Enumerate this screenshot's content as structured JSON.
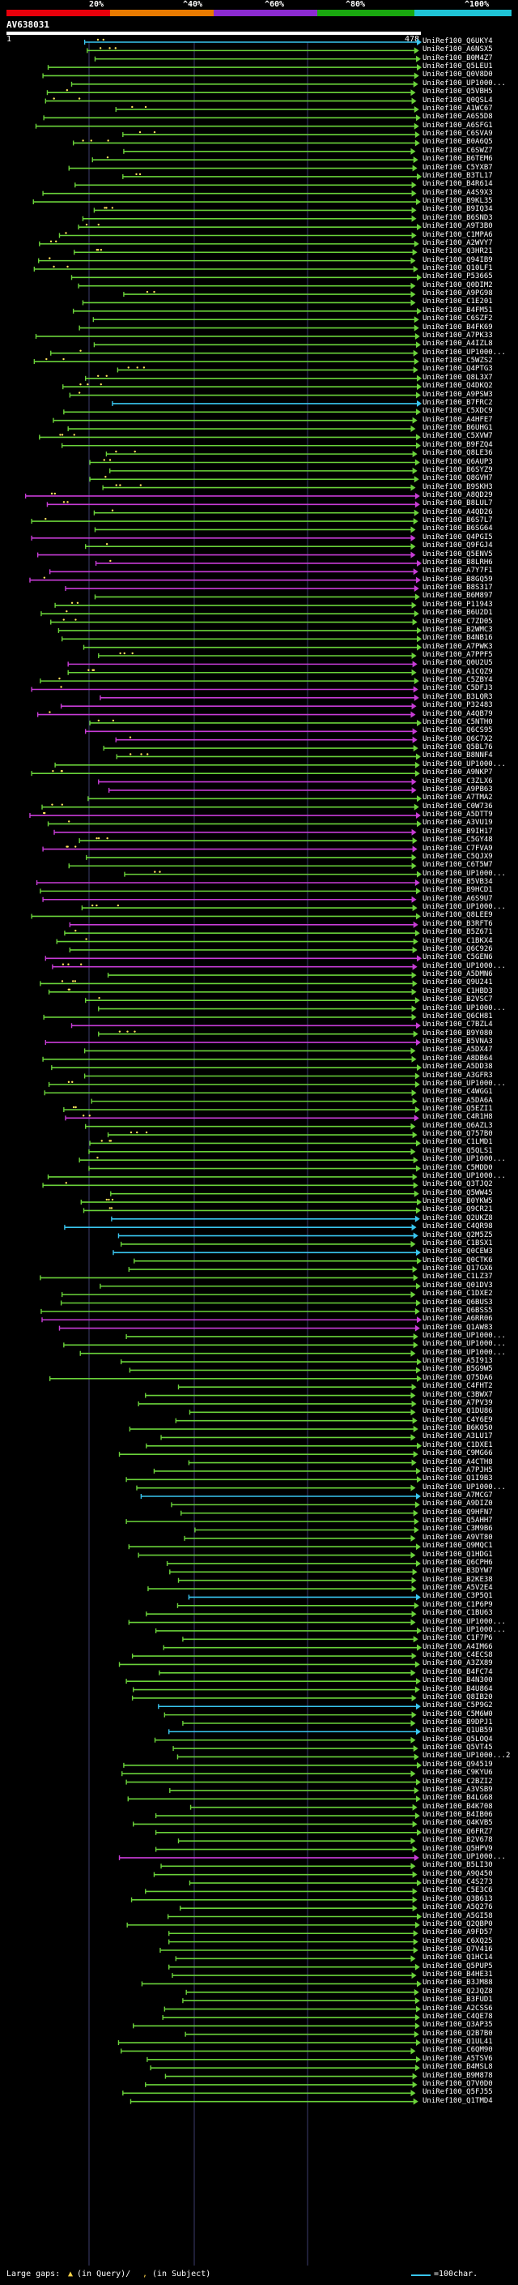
{
  "header": {
    "percent_labels": [
      "20%",
      "^40%",
      "^60%",
      "^80%",
      "^100%"
    ],
    "query_id": "AV638031",
    "scale_start": "1",
    "scale_end": "478"
  },
  "colors": {
    "band": [
      "#e8000b",
      "#e87a00",
      "#8c2bd1",
      "#19a80f",
      "#1fc4d6"
    ],
    "green": "#6ad23a",
    "magenta": "#c73cd6",
    "cyan": "#39c6f0",
    "background": "#000000",
    "guide": "#3b3b6b"
  },
  "axis": {
    "min": 1,
    "max": 478
  },
  "hit_ids": [
    "UniRef100_Q6UKY4",
    "UniRef100_A6NSX5",
    "UniRef100_B0M4Z7",
    "UniRef100_Q5LEU1",
    "UniRef100_Q0V8D0",
    "UniRef100_UP1000...",
    "UniRef100_Q5VBH5",
    "UniRef100_Q0QSL4",
    "UniRef100_A1WC67",
    "UniRef100_A6S5D8",
    "UniRef100_A6SFG1",
    "UniRef100_C6SVA9",
    "UniRef100_B0A6Q5",
    "UniRef100_C6SWZ7",
    "UniRef100_B6TEM6",
    "UniRef100_C5YXB7",
    "UniRef100_B3TL17",
    "UniRef100_B4R614",
    "UniRef100_A4S9X3",
    "UniRef100_B9KL35",
    "UniRef100_B9IQ34",
    "UniRef100_B6SND3",
    "UniRef100_A9T3B0",
    "UniRef100_C1MPA6",
    "UniRef100_A2WVY7",
    "UniRef100_Q3HR21",
    "UniRef100_Q94IB9",
    "UniRef100_Q10LF1",
    "UniRef100_P53665",
    "UniRef100_Q0DIM2",
    "UniRef100_A9PG98",
    "UniRef100_C1E201",
    "UniRef100_B4FM51",
    "UniRef100_C6SZF2",
    "UniRef100_B4FK69",
    "UniRef100_A7PK33",
    "UniRef100_A4IZL8",
    "UniRef100_UP1000...",
    "UniRef100_C5WZS2",
    "UniRef100_Q4PTG3",
    "UniRef100_Q8L3X7",
    "UniRef100_Q4DKQ2",
    "UniRef100_A9PSW3",
    "UniRef100_B7FRC2",
    "UniRef100_C5XDC9",
    "UniRef100_A4HFE7",
    "UniRef100_B6UHG1",
    "UniRef100_C5XVW7",
    "UniRef100_B9FZQ4",
    "UniRef100_Q8LE36",
    "UniRef100_Q6AUP3",
    "UniRef100_B6SYZ9",
    "UniRef100_Q8GVH7",
    "UniRef100_B9SKH3",
    "UniRef100_A8QD29",
    "UniRef100_B8LUL7",
    "UniRef100_A4QD26",
    "UniRef100_B6S7L7",
    "UniRef100_B6SG64",
    "UniRef100_Q4PGI5",
    "UniRef100_Q9FGJ4",
    "UniRef100_Q5ENV5",
    "UniRef100_B8LRH6",
    "UniRef100_A7Y7F1",
    "UniRef100_B8GQ59",
    "UniRef100_B8S317",
    "UniRef100_B6M897",
    "UniRef100_P11943",
    "UniRef100_B6U2D1",
    "UniRef100_C7ZD05",
    "UniRef100_B2WMC3",
    "UniRef100_B4NB16",
    "UniRef100_A7PWK3",
    "UniRef100_A7PPF5",
    "UniRef100_Q0U2U5",
    "UniRef100_A1CQZ9",
    "UniRef100_C5ZBY4",
    "UniRef100_C5DFJ3",
    "UniRef100_B3LQR3",
    "UniRef100_P32483",
    "UniRef100_A4QB79",
    "UniRef100_C5NTH0",
    "UniRef100_Q6CS95",
    "UniRef100_Q6C7X2",
    "UniRef100_Q5BL76",
    "UniRef100_B8NNF4",
    "UniRef100_UP1000...",
    "UniRef100_A9NKP7",
    "UniRef100_C3ZLX6",
    "UniRef100_A9PB63",
    "UniRef100_A7TMA2",
    "UniRef100_C0W736",
    "UniRef100_A5DTT9",
    "UniRef100_A3VU19",
    "UniRef100_B9IH17",
    "UniRef100_C5GY48",
    "UniRef100_C7FVA9",
    "UniRef100_C5QJX9",
    "UniRef100_C6T5W7",
    "UniRef100_UP1000...",
    "UniRef100_B5VB34",
    "UniRef100_B9HCD1",
    "UniRef100_A6S9U7",
    "UniRef100_UP1000...",
    "UniRef100_Q8LEE9",
    "UniRef100_B3RFT6",
    "UniRef100_B5Z671",
    "UniRef100_C1BKX4",
    "UniRef100_Q6C926",
    "UniRef100_C5GEN6",
    "UniRef100_UP1000...",
    "UniRef100_A5DMN6",
    "UniRef100_Q9U241",
    "UniRef100_C1HBD3",
    "UniRef100_B2VSC7",
    "UniRef100_UP1000...",
    "UniRef100_Q6CH81",
    "UniRef100_C7BZL4",
    "UniRef100_B9Y080",
    "UniRef100_B5VNA3",
    "UniRef100_A5DX47",
    "UniRef100_A8DB64",
    "UniRef100_A5DD38",
    "UniRef100_A3GFR3",
    "UniRef100_UP1000...",
    "UniRef100_C4WGG1",
    "UniRef100_A5DA6A",
    "UniRef100_Q5EZI1",
    "UniRef100_C4R1H8",
    "UniRef100_Q6AZL3",
    "UniRef100_Q757B0",
    "UniRef100_C1LMD1",
    "UniRef100_Q5QLS1",
    "UniRef100_UP1000...",
    "UniRef100_C5MDD0",
    "UniRef100_UP1000...",
    "UniRef100_Q3TJQ2",
    "UniRef100_Q5WW45",
    "UniRef100_B0YKW5",
    "UniRef100_Q9CR21",
    "UniRef100_Q2UKZ8",
    "UniRef100_C4QR98",
    "UniRef100_Q2M5Z5",
    "UniRef100_C1BSX1",
    "UniRef100_Q0CEW3",
    "UniRef100_Q0CTK6",
    "UniRef100_Q17GX6",
    "UniRef100_C1LZ37",
    "UniRef100_Q01DV3",
    "UniRef100_C1DXE2",
    "UniRef100_Q6BUS3",
    "UniRef100_Q6BSS5",
    "UniRef100_A6RR06",
    "UniRef100_Q1AW83",
    "UniRef100_UP1000...",
    "UniRef100_UP1000...",
    "UniRef100_UP1000...",
    "UniRef100_A5I913",
    "UniRef100_B5G9W5",
    "UniRef100_Q75DA6",
    "UniRef100_C4FHT2",
    "UniRef100_C3BWX7",
    "UniRef100_A7PV39",
    "UniRef100_Q1DU86",
    "UniRef100_C4Y6E9",
    "UniRef100_B6K050",
    "UniRef100_A3LU17",
    "UniRef100_C1DXE1",
    "UniRef100_C9MG66",
    "UniRef100_A4CTH8",
    "UniRef100_A7PJH5",
    "UniRef100_Q1I9B3",
    "UniRef100_UP1000...",
    "UniRef100_A7MCG7",
    "UniRef100_A9DIZ0",
    "UniRef100_Q9HFN7",
    "UniRef100_Q5AHH7",
    "UniRef100_C3M9B6",
    "UniRef100_A9VT80",
    "UniRef100_Q9MQC1",
    "UniRef100_Q1HDG1",
    "UniRef100_Q6CPH6",
    "UniRef100_B3DYW7",
    "UniRef100_B2KE38",
    "UniRef100_A5V2E4",
    "UniRef100_C3P5Q1",
    "UniRef100_C1P6P9",
    "UniRef100_C1BU63",
    "UniRef100_UP1000...",
    "UniRef100_UP1000...",
    "UniRef100_C1F7P6",
    "UniRef100_A4IM66",
    "UniRef100_C4ECS8",
    "UniRef100_A3ZX89",
    "UniRef100_B4FC74",
    "UniRef100_B4N300",
    "UniRef100_B4U864",
    "UniRef100_Q8IB20",
    "UniRef100_C5P9G2",
    "UniRef100_C5M6W0",
    "UniRef100_B9DPJ1",
    "UniRef100_Q1UB59",
    "UniRef100_Q5LOQ4",
    "UniRef100_Q5VT45",
    "UniRef100_UP1000...2",
    "UniRef100_Q94519",
    "UniRef100_C9KYU6",
    "UniRef100_C2BZI2",
    "UniRef100_A3VSB9",
    "UniRef100_B4LG68",
    "UniRef100_B4K708",
    "UniRef100_B4IB06",
    "UniRef100_Q4KVB5",
    "UniRef100_Q6FRZ7",
    "UniRef100_B2V678",
    "UniRef100_Q5HPV9",
    "UniRef100_UP1000...",
    "UniRef100_B5LI30",
    "UniRef100_A9Q450",
    "UniRef100_C4S273",
    "UniRef100_C5E3C6",
    "UniRef100_Q3B613",
    "UniRef100_A5Q276",
    "UniRef100_A5GI58",
    "UniRef100_Q2QBP0",
    "UniRef100_A9FD57",
    "UniRef100_C6XQ25",
    "UniRef100_Q7V416",
    "UniRef100_Q1HC14",
    "UniRef100_Q5PUP5",
    "UniRef100_B4HE31",
    "UniRef100_B3JM88",
    "UniRef100_Q2JQZ8",
    "UniRef100_B3FUD1",
    "UniRef100_A2CSS6",
    "UniRef100_C4QE78",
    "UniRef100_Q3AP35",
    "UniRef100_Q2B7B0",
    "UniRef100_Q1UL41",
    "UniRef100_C6QM90",
    "UniRef100_A5TSV6",
    "UniRef100_B4MSL8",
    "UniRef100_B9M878",
    "UniRef100_Q7V0D0",
    "UniRef100_Q5FJ55",
    "UniRef100_Q1TMD4"
  ],
  "footer": {
    "gaps_label": "Large gaps:",
    "gap_query": "(in Query)/",
    "gap_subject": "(in Subject)",
    "scale_legend": "=100char."
  }
}
